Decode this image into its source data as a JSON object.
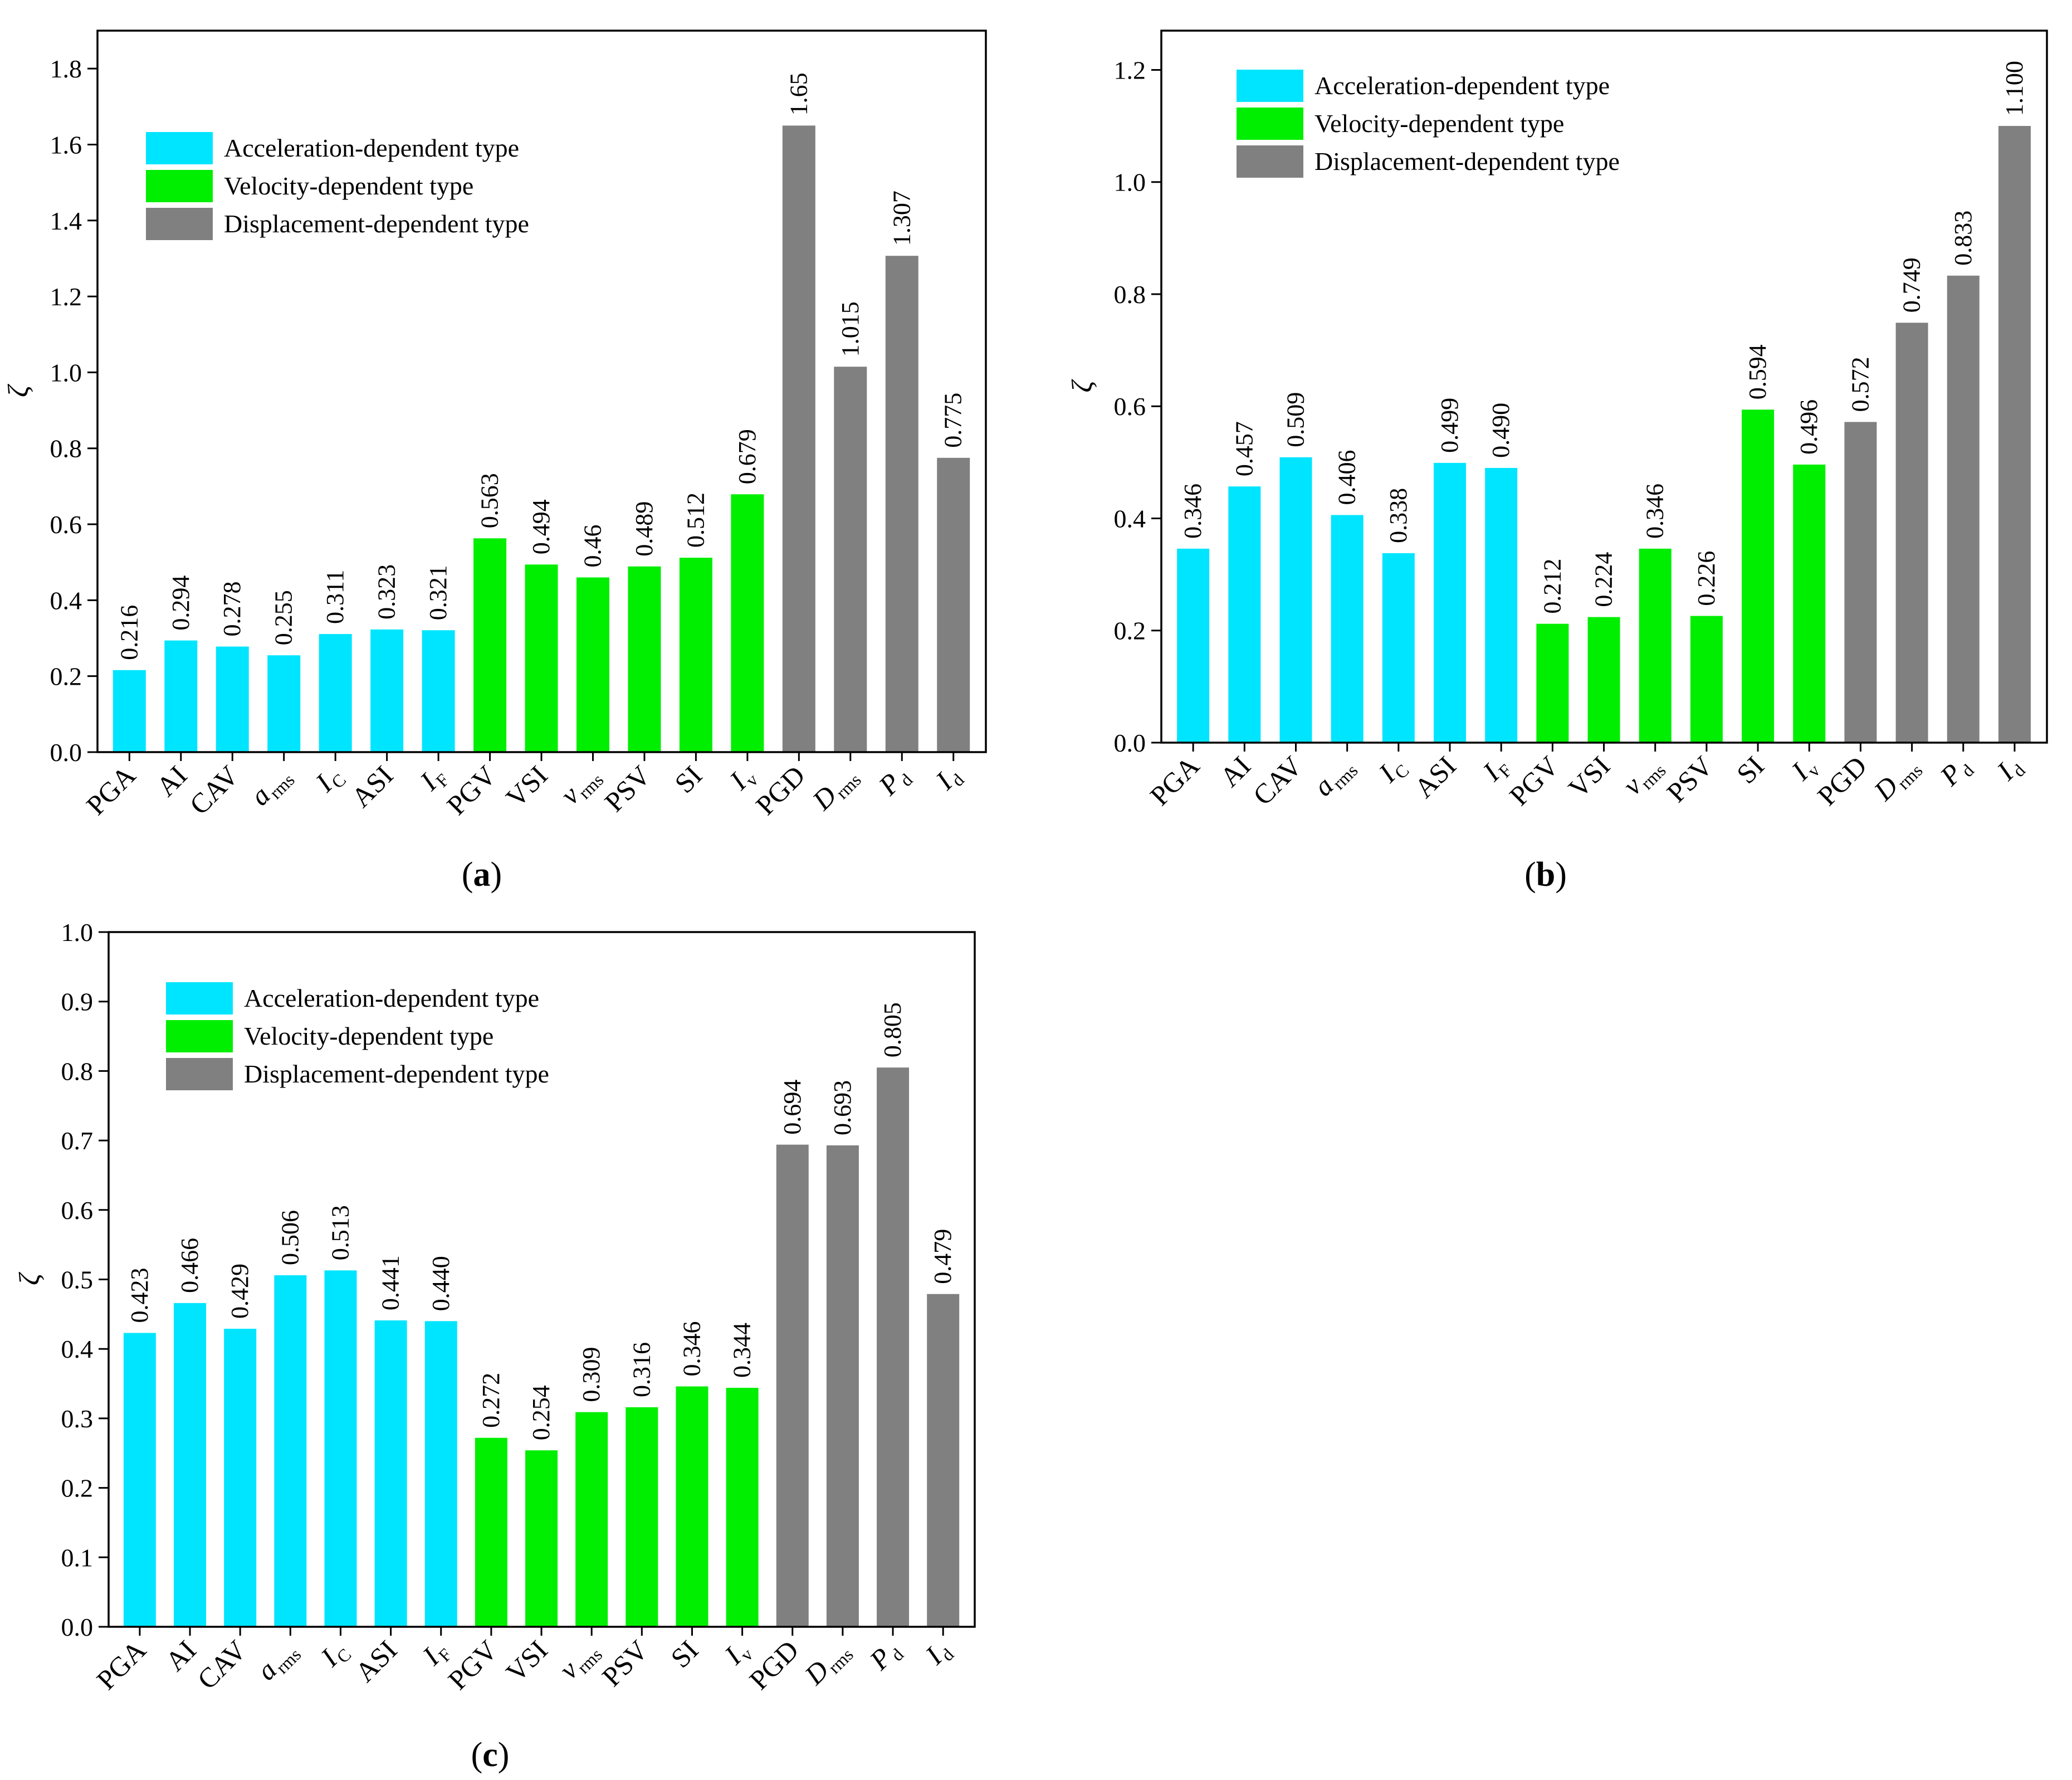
{
  "chart_data": [
    {
      "type": "bar",
      "panel": "a",
      "ylabel": "ζ",
      "ylim": [
        0,
        1.9
      ],
      "yticks": [
        "0.0",
        "0.2",
        "0.4",
        "0.6",
        "0.8",
        "1.0",
        "1.2",
        "1.4",
        "1.6",
        "1.8"
      ],
      "values": [
        0.216,
        0.294,
        0.278,
        0.255,
        0.311,
        0.323,
        0.321,
        0.563,
        0.494,
        0.46,
        0.489,
        0.512,
        0.679,
        1.65,
        1.015,
        1.307,
        0.775
      ],
      "value_labels": [
        "0.216",
        "0.294",
        "0.278",
        "0.255",
        "0.311",
        "0.323",
        "0.321",
        "0.563",
        "0.494",
        "0.46",
        "0.489",
        "0.512",
        "0.679",
        "1.65",
        "1.015",
        "1.307",
        "0.775"
      ]
    },
    {
      "type": "bar",
      "panel": "b",
      "ylabel": "ζ",
      "ylim": [
        0,
        1.27
      ],
      "yticks": [
        "0.0",
        "0.2",
        "0.4",
        "0.6",
        "0.8",
        "1.0",
        "1.2"
      ],
      "values": [
        0.346,
        0.457,
        0.509,
        0.406,
        0.338,
        0.499,
        0.49,
        0.212,
        0.224,
        0.346,
        0.226,
        0.594,
        0.496,
        0.572,
        0.749,
        0.833,
        1.1
      ],
      "value_labels": [
        "0.346",
        "0.457",
        "0.509",
        "0.406",
        "0.338",
        "0.499",
        "0.490",
        "0.212",
        "0.224",
        "0.346",
        "0.226",
        "0.594",
        "0.496",
        "0.572",
        "0.749",
        "0.833",
        "1.100"
      ]
    },
    {
      "type": "bar",
      "panel": "c",
      "ylabel": "ζ",
      "ylim": [
        0,
        1.0
      ],
      "yticks": [
        "0.0",
        "0.1",
        "0.2",
        "0.3",
        "0.4",
        "0.5",
        "0.6",
        "0.7",
        "0.8",
        "0.9",
        "1.0"
      ],
      "values": [
        0.423,
        0.466,
        0.429,
        0.506,
        0.513,
        0.441,
        0.44,
        0.272,
        0.254,
        0.309,
        0.316,
        0.346,
        0.344,
        0.694,
        0.693,
        0.805,
        0.479
      ],
      "value_labels": [
        "0.423",
        "0.466",
        "0.429",
        "0.506",
        "0.513",
        "0.441",
        "0.440",
        "0.272",
        "0.254",
        "0.309",
        "0.316",
        "0.346",
        "0.344",
        "0.694",
        "0.693",
        "0.805",
        "0.479"
      ]
    }
  ],
  "categories": [
    {
      "main": "PGA",
      "sub": "",
      "italic": false
    },
    {
      "main": "AI",
      "sub": "",
      "italic": false
    },
    {
      "main": "CAV",
      "sub": "",
      "italic": false
    },
    {
      "main": "a",
      "sub": "rms",
      "italic": true
    },
    {
      "main": "I",
      "sub": "C",
      "italic": true
    },
    {
      "main": "ASI",
      "sub": "",
      "italic": false
    },
    {
      "main": "I",
      "sub": "F",
      "italic": true
    },
    {
      "main": "PGV",
      "sub": "",
      "italic": false
    },
    {
      "main": "VSI",
      "sub": "",
      "italic": false
    },
    {
      "main": "v",
      "sub": "rms",
      "italic": true
    },
    {
      "main": "PSV",
      "sub": "",
      "italic": false
    },
    {
      "main": "SI",
      "sub": "",
      "italic": false
    },
    {
      "main": "I",
      "sub": "v",
      "italic": true
    },
    {
      "main": "PGD",
      "sub": "",
      "italic": false
    },
    {
      "main": "D",
      "sub": "rms",
      "italic": true
    },
    {
      "main": "P",
      "sub": "d",
      "italic": true
    },
    {
      "main": "I",
      "sub": "d",
      "italic": true
    }
  ],
  "group_index": [
    0,
    0,
    0,
    0,
    0,
    0,
    0,
    1,
    1,
    1,
    1,
    1,
    1,
    2,
    2,
    2,
    2
  ],
  "groups": [
    {
      "name": "Acceleration-dependent type",
      "color": "#00e5ff"
    },
    {
      "name": "Velocity-dependent type",
      "color": "#00ee00"
    },
    {
      "name": "Displacement-dependent type",
      "color": "#808080"
    }
  ],
  "panel_labels": {
    "a": "a",
    "b": "b",
    "c": "c"
  }
}
